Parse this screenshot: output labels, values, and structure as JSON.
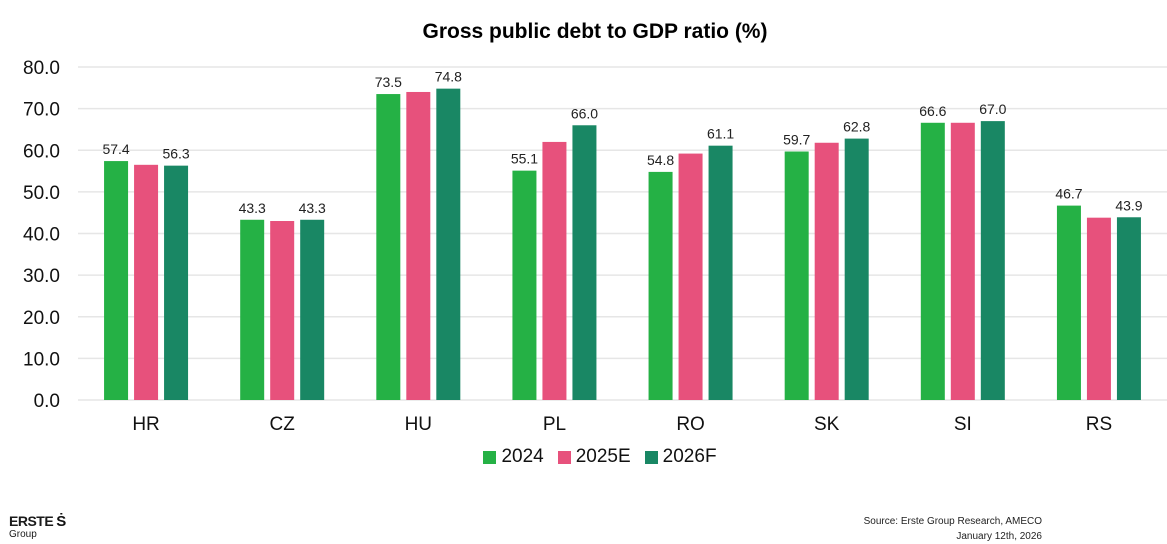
{
  "chart_data": {
    "type": "bar",
    "title": "Gross public debt to GDP ratio (%)",
    "xlabel": "",
    "ylabel": "",
    "ylim": [
      0,
      80
    ],
    "yticks": [
      "0.0",
      "10.0",
      "20.0",
      "30.0",
      "40.0",
      "50.0",
      "60.0",
      "70.0",
      "80.0"
    ],
    "grid": true,
    "legend_position": "bottom-center",
    "categories": [
      "HR",
      "CZ",
      "HU",
      "PL",
      "RO",
      "SK",
      "SI",
      "RS"
    ],
    "series": [
      {
        "name": "2024",
        "color": "#25b145",
        "values": [
          57.4,
          43.3,
          73.5,
          55.1,
          54.8,
          59.7,
          66.6,
          46.7
        ],
        "labeled": [
          true,
          true,
          true,
          true,
          true,
          true,
          true,
          true
        ]
      },
      {
        "name": "2025E",
        "color": "#e7517c",
        "values": [
          56.5,
          43.0,
          74.0,
          62.0,
          59.2,
          61.8,
          66.6,
          43.8
        ],
        "labeled": [
          false,
          false,
          false,
          false,
          false,
          false,
          false,
          false
        ]
      },
      {
        "name": "2026F",
        "color": "#198764",
        "values": [
          56.3,
          43.3,
          74.8,
          66.0,
          61.1,
          62.8,
          67.0,
          43.9
        ],
        "labeled": [
          true,
          true,
          true,
          true,
          true,
          true,
          true,
          true
        ]
      }
    ]
  },
  "footer": {
    "logo_word": "ERSTE",
    "logo_mark": "Ṡ",
    "logo_sub": "Group",
    "source": "Source: Erste Group Research, AMECO",
    "date": "January 12th, 2026"
  }
}
